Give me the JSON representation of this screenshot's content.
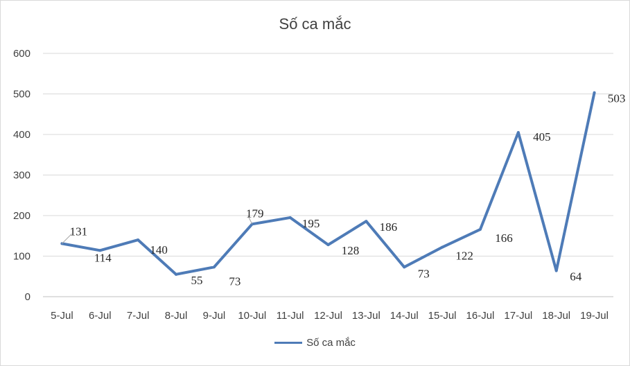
{
  "chart_data": {
    "type": "line",
    "title": "Số ca mắc",
    "categories": [
      "5-Jul",
      "6-Jul",
      "7-Jul",
      "8-Jul",
      "9-Jul",
      "10-Jul",
      "11-Jul",
      "12-Jul",
      "13-Jul",
      "14-Jul",
      "15-Jul",
      "16-Jul",
      "17-Jul",
      "18-Jul",
      "19-Jul"
    ],
    "series": [
      {
        "name": "Số ca mắc",
        "values": [
          131,
          114,
          140,
          55,
          73,
          179,
          195,
          128,
          186,
          73,
          122,
          166,
          405,
          64,
          503
        ],
        "color": "#4e7bb7"
      }
    ],
    "ylim": [
      0,
      600
    ],
    "yticks": [
      0,
      100,
      200,
      300,
      400,
      500,
      600
    ],
    "grid": true,
    "legend": "bottom"
  }
}
